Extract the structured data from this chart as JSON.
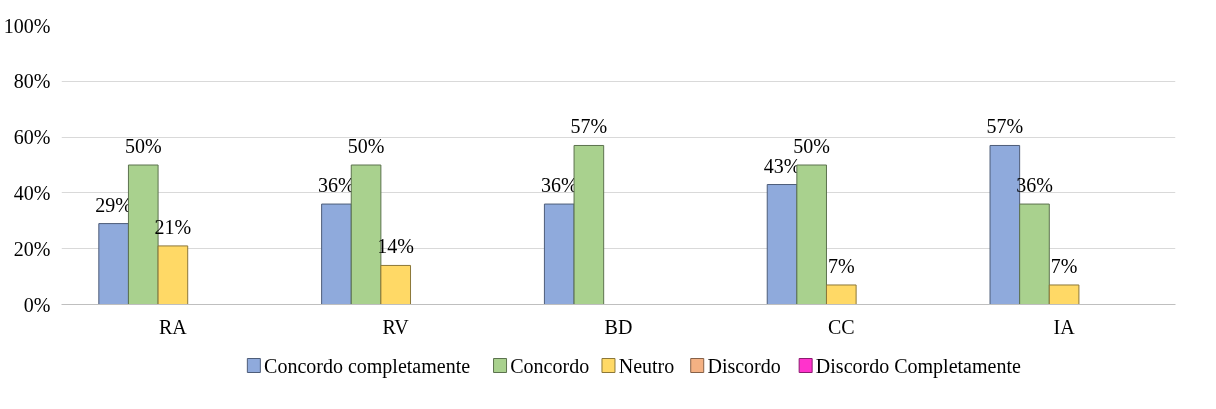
{
  "chart_data": {
    "type": "bar",
    "categories": [
      "RA",
      "RV",
      "BD",
      "CC",
      "IA"
    ],
    "ylim": [
      0,
      100
    ],
    "yticks": [
      {
        "value": 0,
        "label": "0%"
      },
      {
        "value": 20,
        "label": "20%"
      },
      {
        "value": 40,
        "label": "40%"
      },
      {
        "value": 60,
        "label": "60%"
      },
      {
        "value": 80,
        "label": "80%"
      },
      {
        "value": 100,
        "label": "100%"
      }
    ],
    "grid": "y",
    "legend": "bottom",
    "series": [
      {
        "name": "Concordo completamente",
        "color": "#8faadc",
        "values": [
          29,
          36,
          36,
          43,
          57
        ],
        "value_labels": [
          "29%",
          "36%",
          "36%",
          "43%",
          "57%"
        ]
      },
      {
        "name": "Concordo",
        "color": "#a9d18e",
        "values": [
          50,
          50,
          57,
          50,
          36
        ],
        "value_labels": [
          "50%",
          "50%",
          "57%",
          "50%",
          "36%"
        ]
      },
      {
        "name": "Neutro",
        "color": "#ffd966",
        "values": [
          21,
          14,
          0,
          7,
          7
        ],
        "value_labels": [
          "21%",
          "14%",
          null,
          "7%",
          "7%"
        ]
      },
      {
        "name": "Discordo",
        "color": "#f4b183",
        "values": [
          0,
          0,
          0,
          0,
          0
        ],
        "value_labels": [
          null,
          null,
          null,
          null,
          null
        ]
      },
      {
        "name": "Discordo Completamente",
        "color": "#ff33cc",
        "values": [
          0,
          0,
          0,
          0,
          0
        ],
        "value_labels": [
          null,
          null,
          null,
          null,
          null
        ]
      }
    ]
  }
}
